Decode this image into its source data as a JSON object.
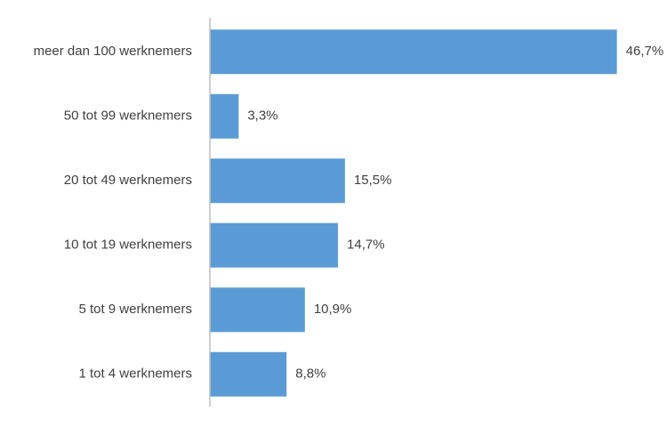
{
  "chart_data": {
    "type": "hbar",
    "categories": [
      "meer dan 100 werknemers",
      "50 tot 99 werknemers",
      "20 tot 49 werknemers",
      "10 tot 19 werknemers",
      "5 tot 9 werknemers",
      "1 tot 4 werknemers"
    ],
    "values": [
      46.7,
      3.3,
      15.5,
      14.7,
      10.9,
      8.8
    ],
    "value_labels": [
      "46,7%",
      "3,3%",
      "15,5%",
      "14,7%",
      "10,9%",
      "8,8%"
    ],
    "color": "#5b9bd5",
    "xlim": [
      0,
      50
    ]
  }
}
